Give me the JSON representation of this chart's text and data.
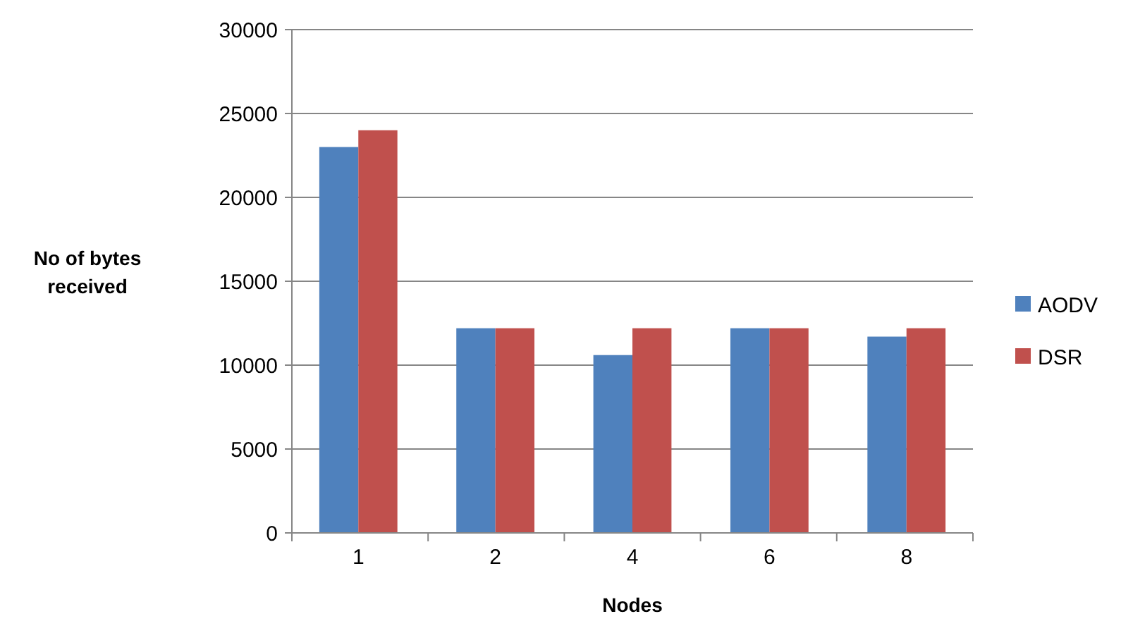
{
  "chart_data": {
    "type": "bar",
    "xlabel": "Nodes",
    "ylabel": "No of bytes received",
    "categories": [
      "1",
      "2",
      "4",
      "6",
      "8"
    ],
    "series": [
      {
        "name": "AODV",
        "color": "#4f81bd",
        "values": [
          23000,
          12200,
          10600,
          12200,
          11700
        ]
      },
      {
        "name": "DSR",
        "color": "#c0504d",
        "values": [
          24000,
          12200,
          12200,
          12200,
          12200
        ]
      }
    ],
    "ylim": [
      0,
      30000
    ],
    "yticks": [
      0,
      5000,
      10000,
      15000,
      20000,
      25000,
      30000
    ],
    "grid": "y",
    "legend": "right"
  }
}
